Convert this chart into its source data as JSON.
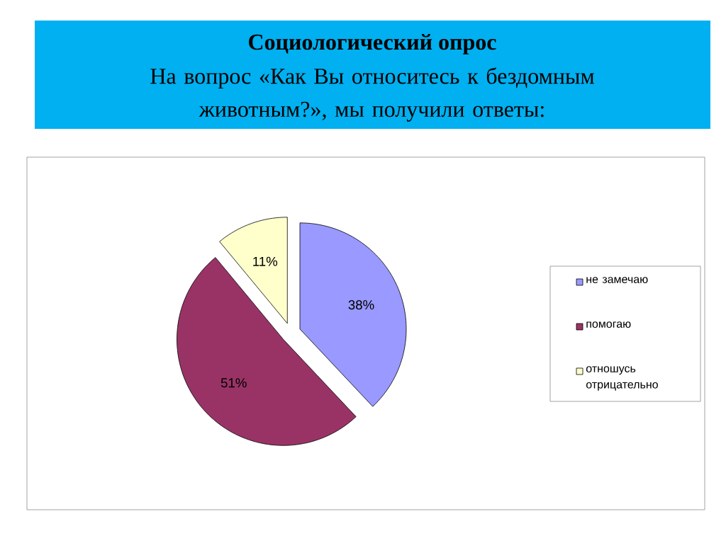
{
  "chart_data": {
    "type": "pie",
    "title": "Социологический опрос",
    "subtitle": "На вопрос «Как Вы относитесь к бездомным животным?», мы получили ответы:",
    "categories": [
      "не замечаю",
      "помогаю",
      "отношусь отрицательно"
    ],
    "values": [
      38,
      51,
      11
    ],
    "colors": [
      "#9999ff",
      "#993366",
      "#ffffcc"
    ],
    "value_labels": [
      "38%",
      "51%",
      "11%"
    ],
    "legend": "right"
  }
}
